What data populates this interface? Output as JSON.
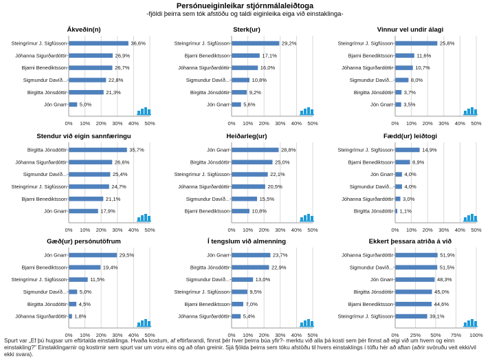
{
  "header": {
    "title": "Persónueiginleikar stjórnmálaleiðtoga",
    "subtitle": "-fjöldi þeirra sem tók afstöðu og taldi eiginleika  eiga við einstaklinga-"
  },
  "colors": {
    "bar": "#4f81bd",
    "grid": "#d9d9d9",
    "axis": "#9a9a9a",
    "logo": "#1f9bd7"
  },
  "logo_icon": "bar-chart-logo-icon",
  "chart_data": [
    {
      "type": "bar",
      "orientation": "horizontal",
      "title": "Ákveðin(n)",
      "categories": [
        "Steingrímur J. Sigfússon",
        "Jóhanna Sigurðardóttir",
        "Bjarni Benediktsson",
        "Sigmundur Davíð...",
        "Birgitta Jónsdóttir",
        "Jón Gnarr"
      ],
      "values": [
        36.6,
        26.9,
        26.7,
        22.8,
        21.3,
        5.0
      ],
      "labels": [
        "36,6%",
        "26,9%",
        "26,7%",
        "22,8%",
        "21,3%",
        "5,0%"
      ],
      "xlim": [
        0,
        50
      ],
      "xticks": [
        "0%",
        "10%",
        "20%",
        "30%",
        "40%",
        "50%"
      ]
    },
    {
      "type": "bar",
      "orientation": "horizontal",
      "title": "Sterk(ur)",
      "categories": [
        "Steingrímur J. Sigfússon",
        "Bjarni Benediktsson",
        "Jóhanna Sigurðardóttir",
        "Sigmundur Davíð...",
        "Birgitta Jónsdóttir",
        "Jón Gnarr"
      ],
      "values": [
        29.2,
        17.1,
        16.0,
        10.8,
        9.2,
        5.6
      ],
      "labels": [
        "29,2%",
        "17,1%",
        "16,0%",
        "10,8%",
        "9,2%",
        "5,6%"
      ],
      "xlim": [
        0,
        50
      ],
      "xticks": [
        "0%",
        "10%",
        "20%",
        "30%",
        "40%",
        "50%"
      ]
    },
    {
      "type": "bar",
      "orientation": "horizontal",
      "title": "Vinnur vel undir álagi",
      "categories": [
        "Steingrímur J. Sigfússon",
        "Bjarni Benediktsson",
        "Jóhanna Sigurðardóttir",
        "Sigmundur Davíð...",
        "Birgitta Jónsdóttir",
        "Jón Gnarr"
      ],
      "values": [
        25.8,
        11.6,
        10.7,
        8.0,
        3.7,
        3.5
      ],
      "labels": [
        "25,8%",
        "11,6%",
        "10,7%",
        "8,0%",
        "3,7%",
        "3,5%"
      ],
      "xlim": [
        0,
        50
      ],
      "xticks": [
        "0%",
        "10%",
        "20%",
        "30%",
        "40%",
        "50%"
      ]
    },
    {
      "type": "bar",
      "orientation": "horizontal",
      "title": "Stendur við eigin sannfæringu",
      "categories": [
        "Birgitta Jónsdóttir",
        "Jóhanna Sigurðardóttir",
        "Sigmundur Davíð...",
        "Steingrímur J. Sigfússon",
        "Bjarni Benediktsson",
        "Jón Gnarr"
      ],
      "values": [
        35.7,
        26.6,
        25.4,
        24.7,
        21.1,
        17.9
      ],
      "labels": [
        "35,7%",
        "26,6%",
        "25,4%",
        "24,7%",
        "21,1%",
        "17,9%"
      ],
      "xlim": [
        0,
        50
      ],
      "xticks": [
        "0%",
        "10%",
        "20%",
        "30%",
        "40%",
        "50%"
      ]
    },
    {
      "type": "bar",
      "orientation": "horizontal",
      "title": "Heiðarleg(ur)",
      "categories": [
        "Jón Gnarr",
        "Birgitta Jónsdóttir",
        "Steingrímur J. Sigfússon",
        "Jóhanna Sigurðardóttir",
        "Sigmundur Davíð...",
        "Bjarni Benediktsson"
      ],
      "values": [
        28.8,
        25.0,
        22.1,
        20.5,
        15.5,
        10.8
      ],
      "labels": [
        "28,8%",
        "25,0%",
        "22,1%",
        "20,5%",
        "15,5%",
        "10,8%"
      ],
      "xlim": [
        0,
        50
      ],
      "xticks": [
        "0%",
        "10%",
        "20%",
        "30%",
        "40%",
        "50%"
      ]
    },
    {
      "type": "bar",
      "orientation": "horizontal",
      "title": "Fædd(ur) leiðtogi",
      "categories": [
        "Steingrímur J. Sigfússon",
        "Bjarni Benediktsson",
        "Jón Gnarr",
        "Sigmundur Davíð...",
        "Jóhanna Sigurðardóttir",
        "Birgitta Jónsdóttir"
      ],
      "values": [
        14.9,
        8.9,
        4.0,
        4.0,
        3.0,
        1.1
      ],
      "labels": [
        "14,9%",
        "8,9%",
        "4,0%",
        "4,0%",
        "3,0%",
        "1,1%"
      ],
      "xlim": [
        0,
        50
      ],
      "xticks": [
        "0%",
        "10%",
        "20%",
        "30%",
        "40%",
        "50%"
      ]
    },
    {
      "type": "bar",
      "orientation": "horizontal",
      "title": "Gæð(ur) persónutöfrum",
      "categories": [
        "Jón Gnarr",
        "Bjarni Benediktsson",
        "Steingrímur J. Sigfússon",
        "Sigmundur Davíð...",
        "Birgitta Jónsdóttir",
        "Jóhanna Sigurðardóttir"
      ],
      "values": [
        29.5,
        19.4,
        11.5,
        5.0,
        4.5,
        1.8
      ],
      "labels": [
        "29,5%",
        "19,4%",
        "11,5%",
        "5,0%",
        "4,5%",
        "1,8%"
      ],
      "xlim": [
        0,
        50
      ],
      "xticks": [
        "0%",
        "10%",
        "20%",
        "30%",
        "40%",
        "50%"
      ]
    },
    {
      "type": "bar",
      "orientation": "horizontal",
      "title": "Í tengslum við almenning",
      "categories": [
        "Jón Gnarr",
        "Birgitta Jónsdóttir",
        "Sigmundur Davíð...",
        "Steingrímur J. Sigfússon",
        "Bjarni Benediktsson",
        "Jóhanna Sigurðardóttir"
      ],
      "values": [
        23.7,
        22.9,
        13.0,
        9.5,
        7.0,
        5.4
      ],
      "labels": [
        "23,7%",
        "22,9%",
        "13,0%",
        "9,5%",
        "7,0%",
        "5,4%"
      ],
      "xlim": [
        0,
        50
      ],
      "xticks": [
        "0%",
        "10%",
        "20%",
        "30%",
        "40%",
        "50%"
      ]
    },
    {
      "type": "bar",
      "orientation": "horizontal",
      "title": "Ekkert þessara atriða á við",
      "categories": [
        "Jóhanna Sigurðardóttir",
        "Sigmundur Davíð...",
        "Jón Gnarr",
        "Birgitta Jónsdóttir",
        "Bjarni Benediktsson",
        "Steingrímur J. Sigfússon"
      ],
      "values": [
        51.9,
        51.5,
        48.3,
        45.0,
        44.6,
        39.1
      ],
      "labels": [
        "51,9%",
        "51,5%",
        "48,3%",
        "45,0%",
        "44,6%",
        "39,1%"
      ],
      "xlim": [
        0,
        100
      ],
      "xticks": [
        "0%",
        "25%",
        "50%",
        "75%",
        "100%"
      ]
    }
  ],
  "footnote": "Spurt var „Ef þú hugsar um eftirtalda einstaklinga.  Hvaða kostum,  af eftirfarandi, finnst þér hver þeirra búa yfir?- merktu við alla þá kosti sem þér finnst  að eigi við um hvern og einn einstakling?\" Einstaklingarnir og kostirnir sem spurt var um voru eins og að ofan greinir. Sjá fjölda þeirra sem tóku afstöðu til hvers einstaklings í töflu hér að aftan (aðrir svöruðu veit ekki/vil ekki svara)."
}
